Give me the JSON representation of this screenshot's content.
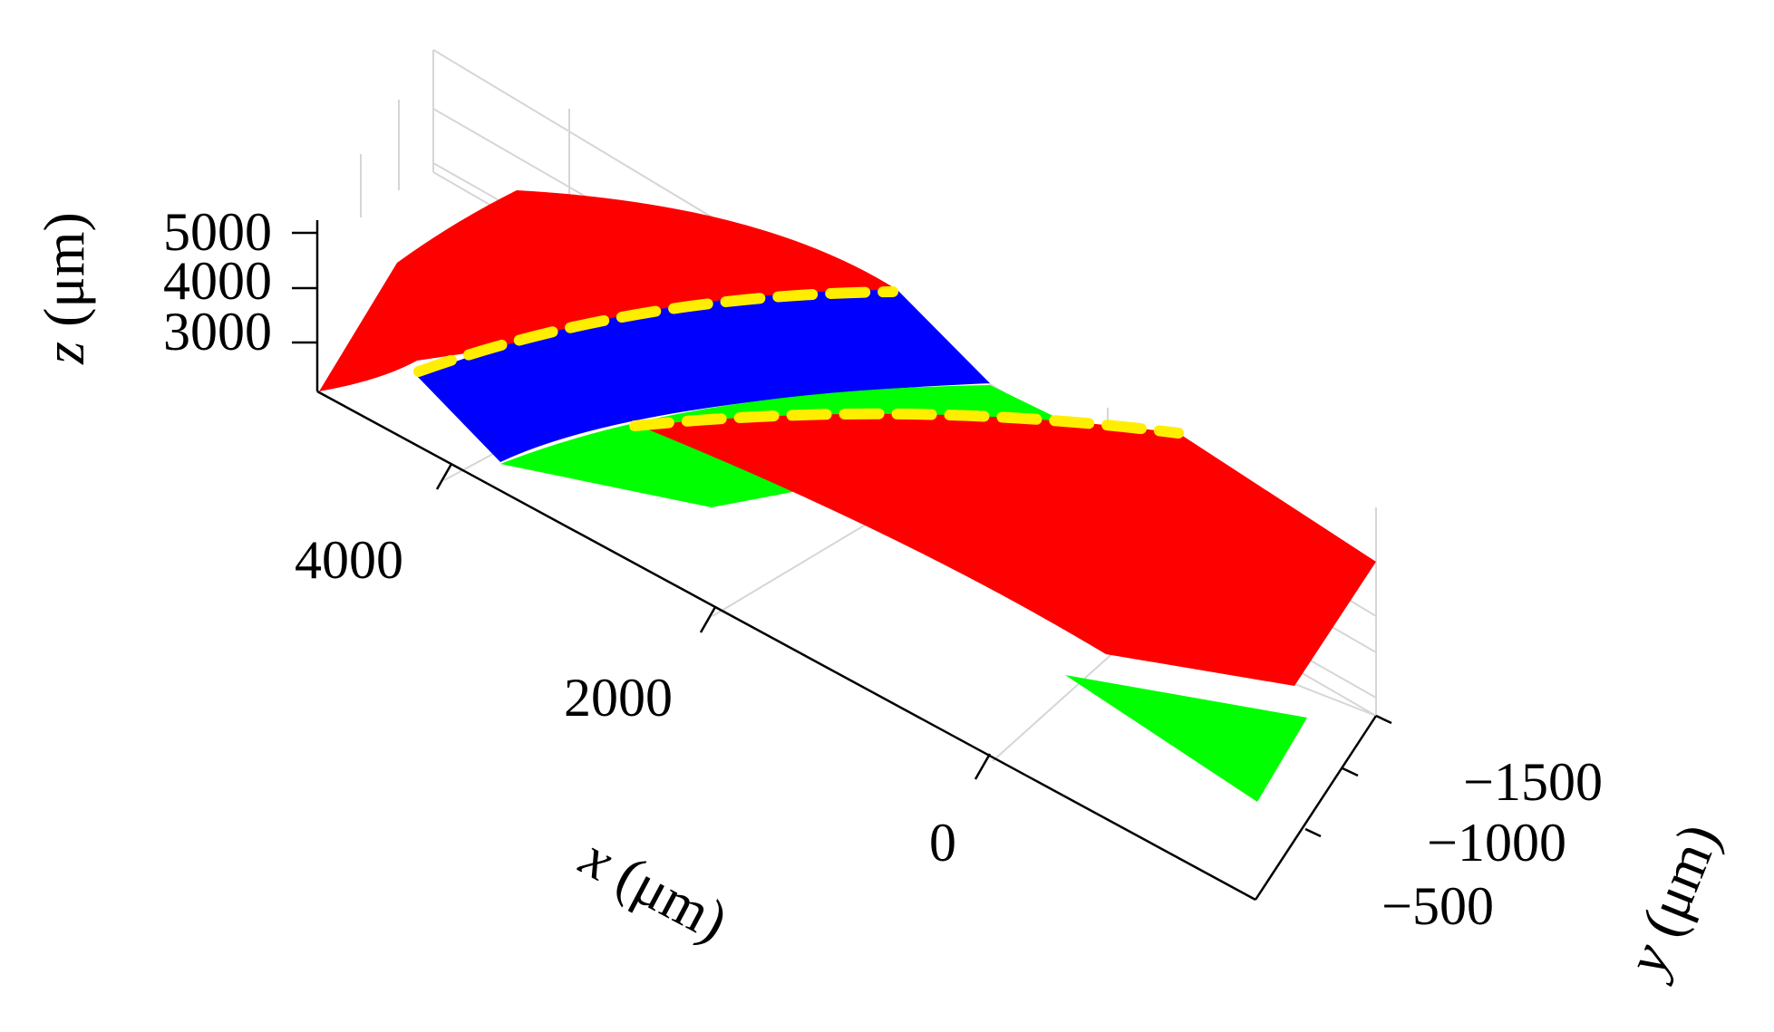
{
  "chart_data": {
    "type": "surface3d",
    "axes": {
      "x": {
        "label_var": "x",
        "label_unit": "(μm)",
        "ticks": [
          "4000",
          "2000",
          "0"
        ],
        "range": [
          -1000,
          5000
        ]
      },
      "y": {
        "label_var": "y",
        "label_unit": "(μm)",
        "ticks": [
          "−1500",
          "−1000",
          "−500"
        ],
        "range": [
          -1700,
          -300
        ]
      },
      "z": {
        "label_var": "z",
        "label_unit": "(μm)",
        "ticks": [
          "5000",
          "4000",
          "3000"
        ],
        "range": [
          2200,
          5200
        ]
      }
    },
    "grid": true,
    "series": [
      {
        "color": "#ff0000"
      },
      {
        "color": "#0000ff"
      },
      {
        "color": "#00ff00"
      },
      {
        "color": "#ffee00",
        "style": "dashed"
      }
    ]
  }
}
